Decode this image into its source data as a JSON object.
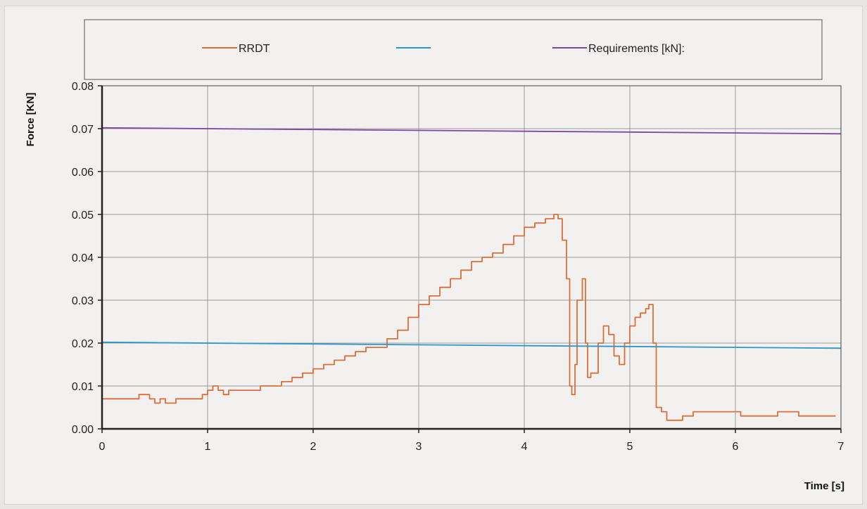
{
  "chart_data": {
    "type": "line",
    "xlabel": "Time [s]",
    "ylabel": "Force [KN]",
    "xlim": [
      0,
      7
    ],
    "ylim": [
      0,
      0.08
    ],
    "x_ticks": [
      "0",
      "1",
      "2",
      "3",
      "4",
      "5",
      "6",
      "7"
    ],
    "y_ticks": [
      "0.00",
      "0.01",
      "0.02",
      "0.03",
      "0.04",
      "0.05",
      "0.06",
      "0.07",
      "0.08"
    ],
    "grid": true,
    "legend": {
      "placement": "top",
      "entries": [
        "RRDT",
        "",
        "Requirements [kN]:"
      ]
    },
    "series": [
      {
        "name": "RRDT",
        "color": "#d9703a",
        "points": [
          [
            0.0,
            0.007
          ],
          [
            0.3,
            0.007
          ],
          [
            0.35,
            0.008
          ],
          [
            0.4,
            0.008
          ],
          [
            0.45,
            0.007
          ],
          [
            0.5,
            0.006
          ],
          [
            0.55,
            0.007
          ],
          [
            0.6,
            0.006
          ],
          [
            0.7,
            0.007
          ],
          [
            0.9,
            0.007
          ],
          [
            0.95,
            0.008
          ],
          [
            1.0,
            0.009
          ],
          [
            1.05,
            0.01
          ],
          [
            1.1,
            0.009
          ],
          [
            1.15,
            0.008
          ],
          [
            1.2,
            0.009
          ],
          [
            1.3,
            0.009
          ],
          [
            1.4,
            0.009
          ],
          [
            1.5,
            0.01
          ],
          [
            1.6,
            0.01
          ],
          [
            1.7,
            0.011
          ],
          [
            1.8,
            0.012
          ],
          [
            1.9,
            0.013
          ],
          [
            2.0,
            0.014
          ],
          [
            2.1,
            0.015
          ],
          [
            2.2,
            0.016
          ],
          [
            2.3,
            0.017
          ],
          [
            2.4,
            0.018
          ],
          [
            2.5,
            0.019
          ],
          [
            2.6,
            0.019
          ],
          [
            2.7,
            0.021
          ],
          [
            2.8,
            0.023
          ],
          [
            2.9,
            0.026
          ],
          [
            3.0,
            0.029
          ],
          [
            3.1,
            0.031
          ],
          [
            3.2,
            0.033
          ],
          [
            3.3,
            0.035
          ],
          [
            3.4,
            0.037
          ],
          [
            3.5,
            0.039
          ],
          [
            3.6,
            0.04
          ],
          [
            3.7,
            0.041
          ],
          [
            3.8,
            0.043
          ],
          [
            3.9,
            0.045
          ],
          [
            4.0,
            0.047
          ],
          [
            4.1,
            0.048
          ],
          [
            4.2,
            0.049
          ],
          [
            4.28,
            0.05
          ],
          [
            4.32,
            0.049
          ],
          [
            4.36,
            0.044
          ],
          [
            4.4,
            0.035
          ],
          [
            4.43,
            0.01
          ],
          [
            4.45,
            0.008
          ],
          [
            4.48,
            0.015
          ],
          [
            4.5,
            0.03
          ],
          [
            4.55,
            0.035
          ],
          [
            4.58,
            0.02
          ],
          [
            4.6,
            0.012
          ],
          [
            4.63,
            0.013
          ],
          [
            4.7,
            0.02
          ],
          [
            4.75,
            0.024
          ],
          [
            4.8,
            0.022
          ],
          [
            4.85,
            0.017
          ],
          [
            4.9,
            0.015
          ],
          [
            4.95,
            0.02
          ],
          [
            5.0,
            0.024
          ],
          [
            5.05,
            0.026
          ],
          [
            5.1,
            0.027
          ],
          [
            5.15,
            0.028
          ],
          [
            5.18,
            0.029
          ],
          [
            5.2,
            0.029
          ],
          [
            5.22,
            0.02
          ],
          [
            5.25,
            0.005
          ],
          [
            5.3,
            0.004
          ],
          [
            5.35,
            0.002
          ],
          [
            5.4,
            0.002
          ],
          [
            5.5,
            0.003
          ],
          [
            5.6,
            0.004
          ],
          [
            5.8,
            0.004
          ],
          [
            6.0,
            0.004
          ],
          [
            6.05,
            0.003
          ],
          [
            6.2,
            0.003
          ],
          [
            6.4,
            0.004
          ],
          [
            6.6,
            0.003
          ],
          [
            6.8,
            0.003
          ],
          [
            6.95,
            0.003
          ]
        ]
      },
      {
        "name": "",
        "color": "#2a96cc",
        "points": [
          [
            0,
            0.0202
          ],
          [
            7,
            0.0188
          ]
        ]
      },
      {
        "name": "Requirements [kN]:",
        "color": "#7a4a9e",
        "points": [
          [
            0,
            0.0702
          ],
          [
            7,
            0.0688
          ]
        ]
      }
    ]
  }
}
